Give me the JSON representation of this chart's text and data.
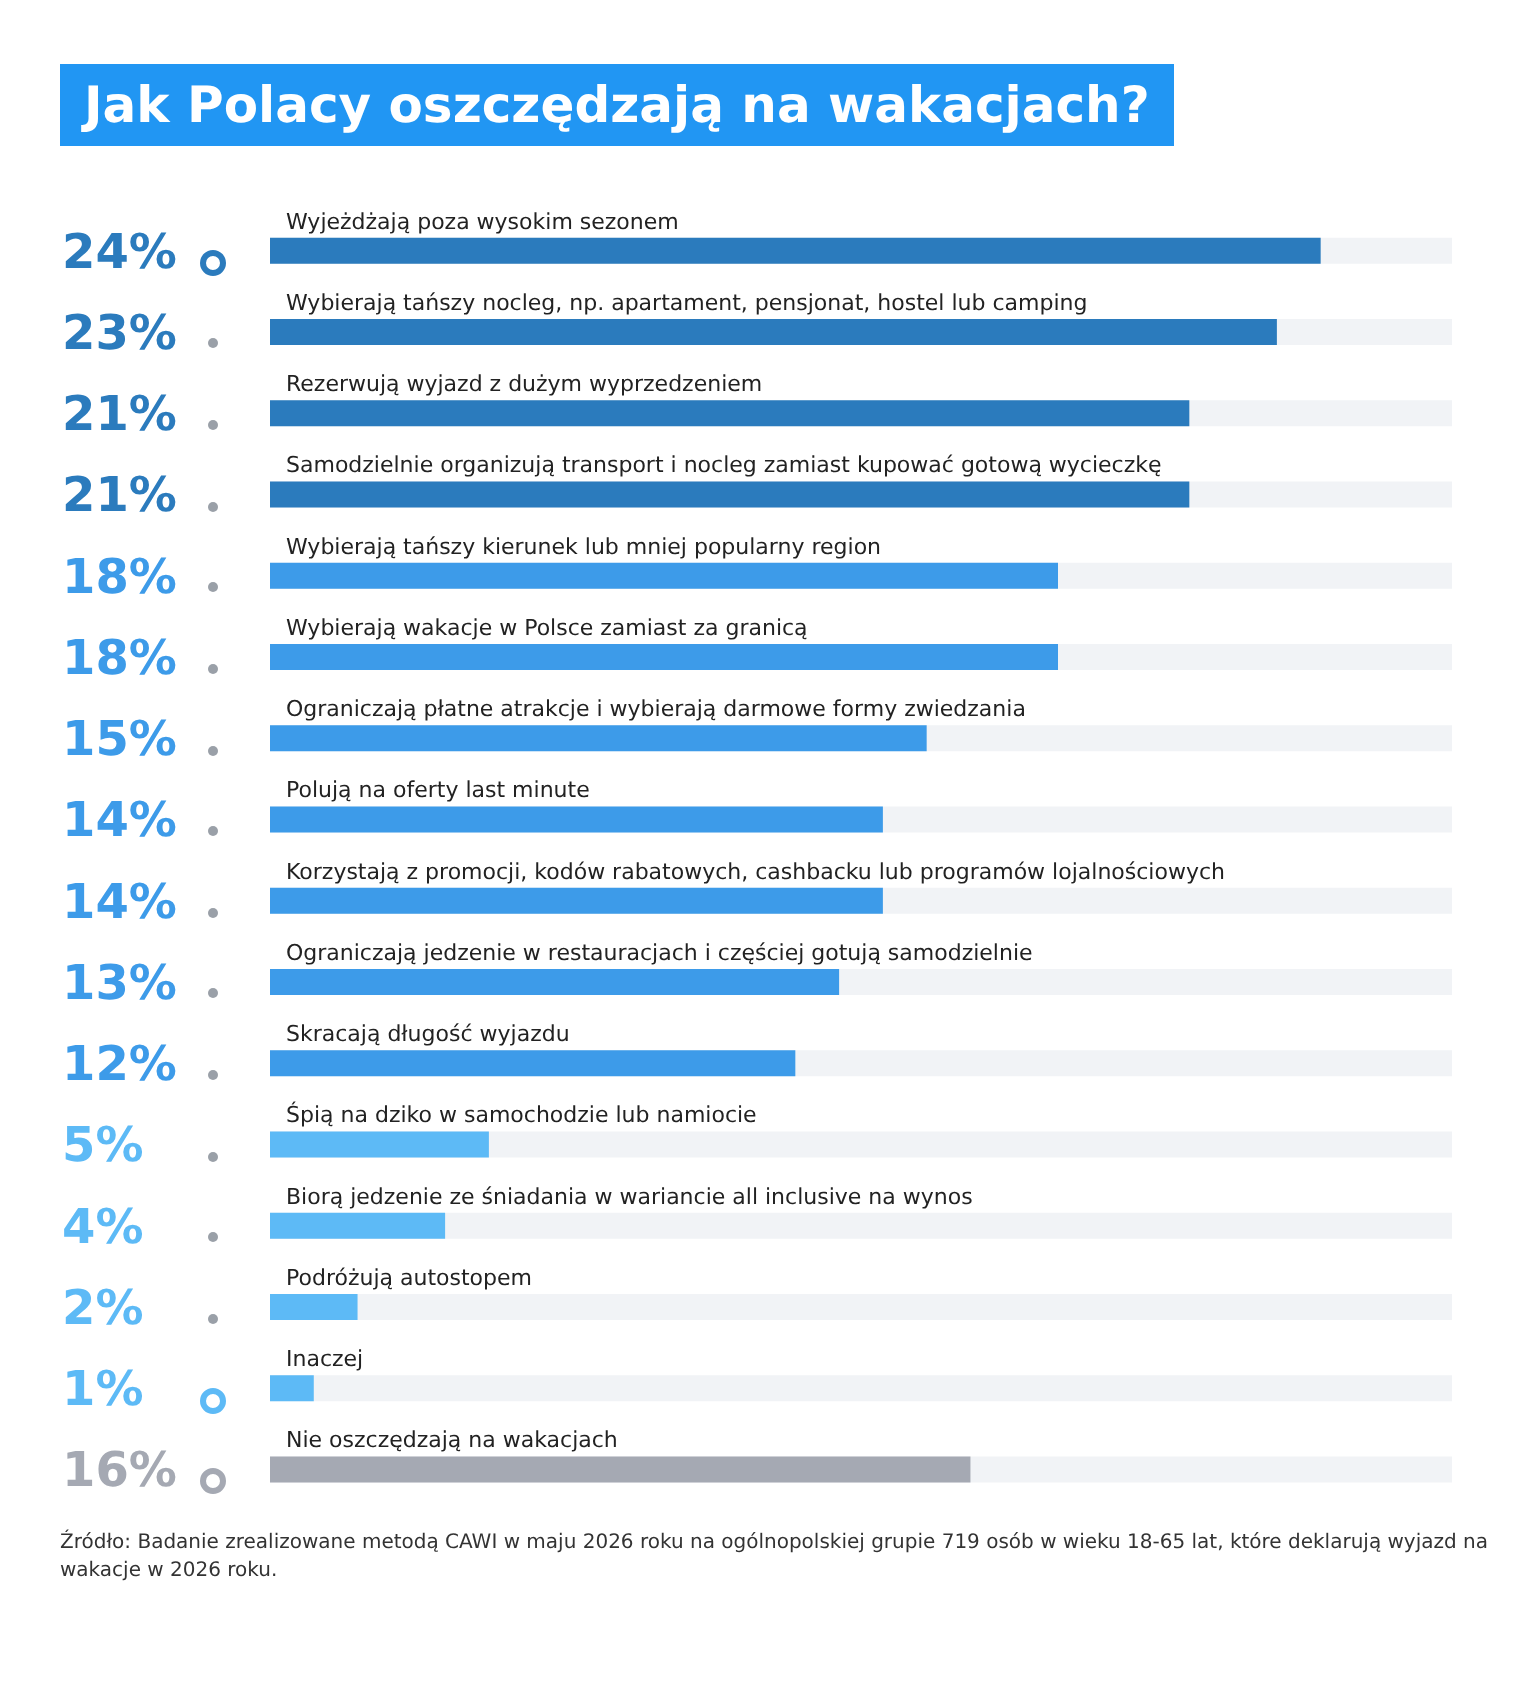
{
  "chart_data": {
    "type": "bar",
    "orientation": "horizontal",
    "title": "Jak Polacy oszczędzają na wakacjach?",
    "categories": [
      "Wyjeżdżają poza wysokim sezonem",
      "Wybierają tańszy nocleg, np. apartament, pensjonat, hostel lub camping",
      "Rezerwują wyjazd z dużym wyprzedzeniem",
      "Samodzielnie organizują transport i nocleg zamiast kupować gotową wycieczkę",
      "Wybierają tańszy kierunek lub mniej popularny region",
      "Wybierają wakacje w Polsce zamiast za granicą",
      "Ograniczają płatne atrakcje i wybierają darmowe formy zwiedzania",
      "Polują na oferty last minute",
      "Korzystają z promocji, kodów rabatowych, cashbacku lub programów lojalnościowych",
      "Ograniczają jedzenie w restauracjach i częściej gotują samodzielnie",
      "Skracają długość wyjazdu",
      "Śpią na dziko w samochodzie lub namiocie",
      "Biorą jedzenie ze śniadania w wariancie all inclusive na wynos",
      "Podróżują autostopem",
      "Inaczej",
      "Nie oszczędzają na wakacjach"
    ],
    "values": [
      24,
      23,
      21,
      21,
      18,
      18,
      15,
      14,
      14,
      13,
      12,
      5,
      4,
      2,
      1,
      16
    ],
    "value_labels": [
      "24%",
      "23%",
      "21%",
      "21%",
      "18%",
      "18%",
      "15%",
      "14%",
      "14%",
      "13%",
      "12%",
      "5%",
      "4%",
      "2%",
      "1%",
      "16%"
    ],
    "colors": [
      "#2b7bbd",
      "#2b7bbd",
      "#2b7bbd",
      "#2b7bbd",
      "#3d9be9",
      "#3d9be9",
      "#3d9be9",
      "#3d9be9",
      "#3d9be9",
      "#3d9be9",
      "#3d9be9",
      "#5dbaf6",
      "#5dbaf6",
      "#5dbaf6",
      "#5dbaf6",
      "#a5a9b3"
    ],
    "xlim": [
      0,
      27
    ],
    "annotations": [
      "Źródło: Badanie zrealizowane metodą CAWI w maju 2026 roku na ogólnopolskiej grupie 719 osób w wieku 18-65 lat, które deklarują wyjazd na wakacje w 2026 roku."
    ]
  }
}
